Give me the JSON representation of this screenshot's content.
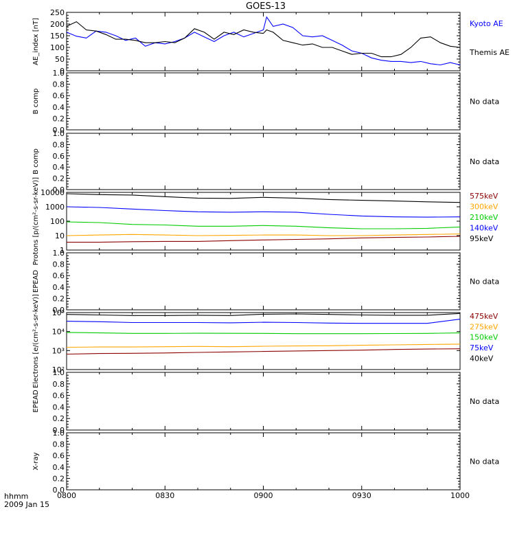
{
  "title": "GOES-13",
  "footer": {
    "line1": "hhmm",
    "line2": "2009 Jan 15"
  },
  "chart_data": [
    {
      "type": "line",
      "panel": "ae",
      "ylabel": "AE_index [nT]",
      "ylim": [
        0,
        250
      ],
      "yticks": [
        "0",
        "50",
        "100",
        "150",
        "200",
        "250"
      ],
      "x": [
        "08:00",
        "08:03",
        "08:06",
        "08:09",
        "08:12",
        "08:15",
        "08:18",
        "08:21",
        "08:24",
        "08:27",
        "08:30",
        "08:33",
        "08:36",
        "08:39",
        "08:42",
        "08:45",
        "08:48",
        "08:51",
        "08:54",
        "08:57",
        "09:00",
        "09:01",
        "09:03",
        "09:06",
        "09:09",
        "09:12",
        "09:15",
        "09:18",
        "09:21",
        "09:24",
        "09:27",
        "09:30",
        "09:33",
        "09:36",
        "09:39",
        "09:42",
        "09:45",
        "09:48",
        "09:51",
        "09:54",
        "09:57",
        "10:00"
      ],
      "series": [
        {
          "name": "Kyoto AE",
          "color": "#0000ff",
          "values": [
            165,
            148,
            140,
            170,
            165,
            150,
            130,
            140,
            105,
            120,
            115,
            125,
            140,
            165,
            145,
            125,
            150,
            165,
            145,
            160,
            175,
            230,
            190,
            200,
            185,
            150,
            145,
            150,
            130,
            110,
            85,
            75,
            55,
            45,
            40,
            40,
            35,
            40,
            30,
            25,
            35,
            25
          ]
        },
        {
          "name": "Themis AE",
          "color": "#000000",
          "values": [
            190,
            210,
            175,
            170,
            155,
            135,
            135,
            130,
            120,
            120,
            125,
            120,
            140,
            180,
            165,
            135,
            165,
            155,
            175,
            165,
            160,
            175,
            165,
            130,
            120,
            110,
            115,
            100,
            100,
            85,
            70,
            75,
            75,
            60,
            60,
            70,
            100,
            140,
            145,
            120,
            105,
            100
          ]
        }
      ]
    },
    {
      "type": "line",
      "panel": "bcomp1",
      "ylabel": "B comp",
      "ylim": [
        0,
        1
      ],
      "yticks": [
        "0.0",
        "0.2",
        "0.4",
        "0.6",
        "0.8",
        "1.0"
      ],
      "note": "No data"
    },
    {
      "type": "line",
      "panel": "bcomp2",
      "ylabel": "B comp",
      "ylim": [
        0,
        1
      ],
      "yticks": [
        "0.0",
        "0.2",
        "0.4",
        "0.6",
        "0.8",
        "1.0"
      ],
      "note": "No data"
    },
    {
      "type": "line",
      "panel": "protons",
      "ylabel": "Protons [p/(cm²-s-sr-keV)]",
      "yscale": "log",
      "ylim": [
        1,
        10000
      ],
      "yticks": [
        "1",
        "10",
        "100",
        "1000",
        "10000"
      ],
      "x": [
        "08:00",
        "08:10",
        "08:20",
        "08:30",
        "08:40",
        "08:50",
        "09:00",
        "09:10",
        "09:20",
        "09:30",
        "09:40",
        "09:50",
        "10:00"
      ],
      "series": [
        {
          "name": "575keV",
          "color": "#8b0000",
          "values": [
            3.5,
            3.5,
            3.8,
            4,
            4,
            4.5,
            5,
            5.5,
            6,
            7,
            7.5,
            8,
            9
          ]
        },
        {
          "name": "300keV",
          "color": "#ffa500",
          "values": [
            10,
            11,
            12,
            11,
            10,
            10.5,
            11,
            11,
            10,
            10,
            11,
            12,
            13
          ]
        },
        {
          "name": "210keV",
          "color": "#00cc00",
          "values": [
            90,
            80,
            60,
            55,
            45,
            45,
            50,
            45,
            35,
            30,
            30,
            32,
            40
          ]
        },
        {
          "name": "140keV",
          "color": "#0000ff",
          "values": [
            1000,
            900,
            700,
            550,
            450,
            420,
            450,
            420,
            300,
            230,
            200,
            190,
            200
          ]
        },
        {
          "name": "95keV",
          "color": "#000000",
          "values": [
            8000,
            7000,
            6500,
            5000,
            4000,
            3800,
            4500,
            4000,
            3200,
            2800,
            2500,
            2200,
            2000
          ]
        }
      ]
    },
    {
      "type": "line",
      "panel": "epead1",
      "ylabel": "EPEAD",
      "ylim": [
        0,
        1
      ],
      "yticks": [
        "0.0",
        "0.2",
        "0.4",
        "0.6",
        "0.8",
        "1.0"
      ],
      "note": "No data"
    },
    {
      "type": "line",
      "panel": "electrons",
      "ylabel": "Electrons [e/(cm²-s-sr-keV)]",
      "yscale": "log",
      "ylim": [
        100,
        100000
      ],
      "yticks": [
        "10²",
        "10³",
        "10⁴",
        "10⁵"
      ],
      "x": [
        "08:00",
        "08:10",
        "08:20",
        "08:30",
        "08:40",
        "08:50",
        "09:00",
        "09:10",
        "09:20",
        "09:30",
        "09:40",
        "09:50",
        "10:00"
      ],
      "series": [
        {
          "name": "475keV",
          "color": "#8b0000",
          "values": [
            650,
            700,
            720,
            750,
            800,
            850,
            900,
            950,
            1000,
            1050,
            1150,
            1200,
            1250
          ]
        },
        {
          "name": "275keV",
          "color": "#ffa500",
          "values": [
            1500,
            1550,
            1550,
            1600,
            1650,
            1600,
            1700,
            1750,
            1800,
            1900,
            2000,
            2100,
            2200
          ]
        },
        {
          "name": "150keV",
          "color": "#00cc00",
          "values": [
            9000,
            8500,
            8000,
            8000,
            8200,
            8100,
            8000,
            7800,
            7800,
            7800,
            7900,
            8000,
            8500
          ]
        },
        {
          "name": "75keV",
          "color": "#0000ff",
          "values": [
            35000,
            33000,
            30000,
            30000,
            30000,
            29000,
            31000,
            30000,
            28000,
            27000,
            27000,
            27000,
            45000
          ]
        },
        {
          "name": "40keV",
          "color": "#000000",
          "values": [
            80000,
            75000,
            70000,
            70000,
            72000,
            70000,
            82000,
            85000,
            80000,
            75000,
            72000,
            72000,
            90000
          ]
        }
      ]
    },
    {
      "type": "line",
      "panel": "epead2",
      "ylabel": "EPEAD",
      "ylim": [
        0,
        1
      ],
      "yticks": [
        "0.0",
        "0.2",
        "0.4",
        "0.6",
        "0.8",
        "1.0"
      ],
      "note": "No data"
    },
    {
      "type": "line",
      "panel": "xray",
      "ylabel": "X-ray",
      "ylim": [
        0,
        1
      ],
      "yticks": [
        "0.0",
        "0.2",
        "0.4",
        "0.6",
        "0.8",
        "1.0"
      ],
      "note": "No data"
    }
  ],
  "xaxis": {
    "ticks": [
      "0800",
      "0830",
      "0900",
      "0930",
      "1000"
    ],
    "range": [
      "08:00",
      "10:00"
    ]
  }
}
